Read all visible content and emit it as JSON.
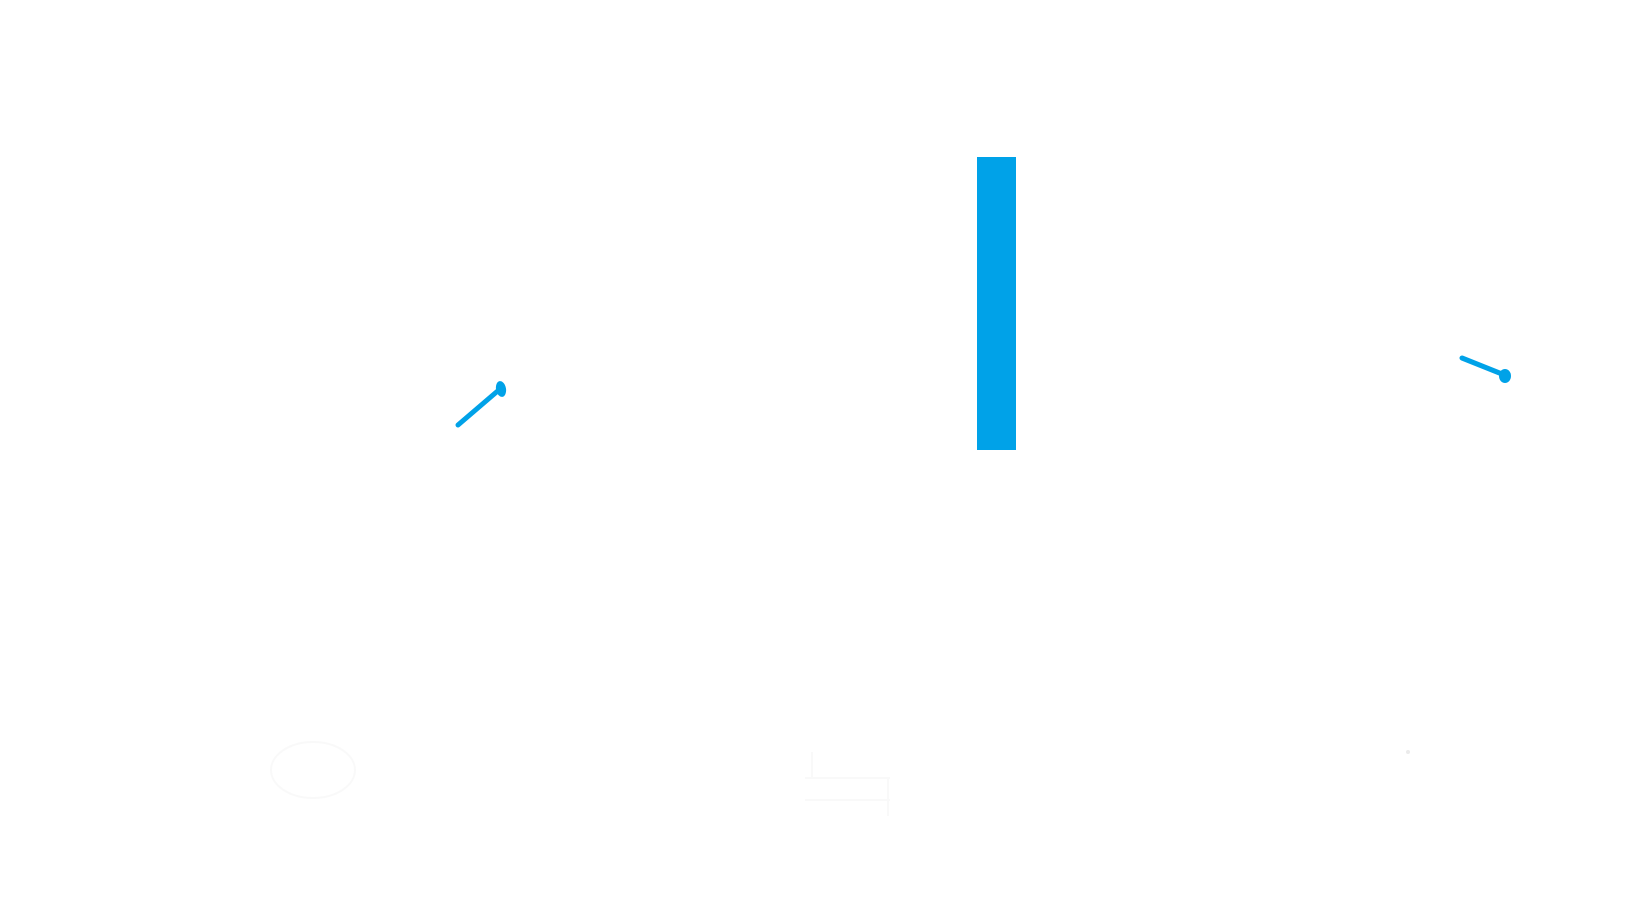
{
  "colors": {
    "background": "#ffffff",
    "accent": "#00a2e8",
    "faint": "#f7f7f7"
  },
  "icons": {
    "left_stroke": "left-blue-stroke-icon",
    "center_bar": "center-blue-bar-icon",
    "right_stroke": "right-blue-stroke-icon",
    "left_faint": "faint-ellipse-icon",
    "center_faint": "faint-lines-icon",
    "right_faint": "faint-mark-icon"
  }
}
